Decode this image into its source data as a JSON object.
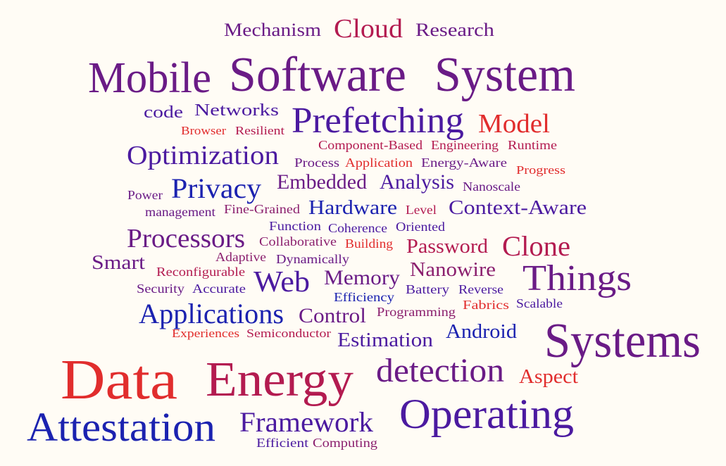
{
  "colors": {
    "background": "#fffcf5",
    "red": "#e12d2d",
    "crimson": "#b31b50",
    "magenta": "#8b1f6e",
    "purple": "#6a1b86",
    "indigo": "#4b1aa0",
    "blue": "#1b22b0"
  },
  "words": [
    {
      "text": "Mechanism",
      "size": 26,
      "color": "purple"
    },
    {
      "text": "Cloud",
      "size": 38,
      "color": "crimson"
    },
    {
      "text": "Research",
      "size": 26,
      "color": "purple"
    },
    {
      "text": "Mobile",
      "size": 62,
      "color": "purple"
    },
    {
      "text": "Software",
      "size": 70,
      "color": "purple"
    },
    {
      "text": "System",
      "size": 70,
      "color": "purple"
    },
    {
      "text": "code",
      "size": 24,
      "color": "indigo"
    },
    {
      "text": "Networks",
      "size": 24,
      "color": "indigo"
    },
    {
      "text": "Prefetching",
      "size": 52,
      "color": "indigo"
    },
    {
      "text": "Model",
      "size": 38,
      "color": "red"
    },
    {
      "text": "Browser",
      "size": 17,
      "color": "red"
    },
    {
      "text": "Resilient",
      "size": 17,
      "color": "crimson"
    },
    {
      "text": "Optimization",
      "size": 38,
      "color": "indigo"
    },
    {
      "text": "Component-Based",
      "size": 18,
      "color": "crimson"
    },
    {
      "text": "Engineering",
      "size": 18,
      "color": "crimson"
    },
    {
      "text": "Runtime",
      "size": 18,
      "color": "crimson"
    },
    {
      "text": "Process",
      "size": 18,
      "color": "purple"
    },
    {
      "text": "Application",
      "size": 18,
      "color": "red"
    },
    {
      "text": "Energy-Aware",
      "size": 18,
      "color": "purple"
    },
    {
      "text": "Progress",
      "size": 17,
      "color": "red"
    },
    {
      "text": "Power",
      "size": 18,
      "color": "purple"
    },
    {
      "text": "Privacy",
      "size": 40,
      "color": "blue"
    },
    {
      "text": "Embedded",
      "size": 30,
      "color": "purple"
    },
    {
      "text": "Analysis",
      "size": 30,
      "color": "indigo"
    },
    {
      "text": "Nanoscale",
      "size": 18,
      "color": "purple"
    },
    {
      "text": "management",
      "size": 18,
      "color": "purple"
    },
    {
      "text": "Fine-Grained",
      "size": 18,
      "color": "magenta"
    },
    {
      "text": "Hardware",
      "size": 28,
      "color": "blue"
    },
    {
      "text": "Level",
      "size": 18,
      "color": "crimson"
    },
    {
      "text": "Context-Aware",
      "size": 28,
      "color": "indigo"
    },
    {
      "text": "Function",
      "size": 18,
      "color": "indigo"
    },
    {
      "text": "Coherence",
      "size": 18,
      "color": "indigo"
    },
    {
      "text": "Oriented",
      "size": 18,
      "color": "indigo"
    },
    {
      "text": "Processors",
      "size": 38,
      "color": "purple"
    },
    {
      "text": "Collaborative",
      "size": 18,
      "color": "magenta"
    },
    {
      "text": "Building",
      "size": 18,
      "color": "red"
    },
    {
      "text": "Password",
      "size": 28,
      "color": "crimson"
    },
    {
      "text": "Clone",
      "size": 40,
      "color": "crimson"
    },
    {
      "text": "Smart",
      "size": 28,
      "color": "purple"
    },
    {
      "text": "Adaptive",
      "size": 18,
      "color": "magenta"
    },
    {
      "text": "Dynamically",
      "size": 18,
      "color": "purple"
    },
    {
      "text": "Reconfigurable",
      "size": 18,
      "color": "crimson"
    },
    {
      "text": "Web",
      "size": 42,
      "color": "indigo"
    },
    {
      "text": "Memory",
      "size": 30,
      "color": "purple"
    },
    {
      "text": "Nanowire",
      "size": 28,
      "color": "magenta"
    },
    {
      "text": "Things",
      "size": 52,
      "color": "purple"
    },
    {
      "text": "Security",
      "size": 18,
      "color": "purple"
    },
    {
      "text": "Accurate",
      "size": 18,
      "color": "indigo"
    },
    {
      "text": "Efficiency",
      "size": 18,
      "color": "blue"
    },
    {
      "text": "Battery",
      "size": 18,
      "color": "indigo"
    },
    {
      "text": "Reverse",
      "size": 18,
      "color": "indigo"
    },
    {
      "text": "Fabrics",
      "size": 18,
      "color": "red"
    },
    {
      "text": "Scalable",
      "size": 18,
      "color": "indigo"
    },
    {
      "text": "Applications",
      "size": 40,
      "color": "blue"
    },
    {
      "text": "Control",
      "size": 30,
      "color": "purple"
    },
    {
      "text": "Programming",
      "size": 18,
      "color": "magenta"
    },
    {
      "text": "Experiences",
      "size": 17,
      "color": "red"
    },
    {
      "text": "Semiconductor",
      "size": 17,
      "color": "crimson"
    },
    {
      "text": "Estimation",
      "size": 28,
      "color": "indigo"
    },
    {
      "text": "Android",
      "size": 28,
      "color": "blue"
    },
    {
      "text": "Systems",
      "size": 70,
      "color": "purple"
    },
    {
      "text": "Data",
      "size": 80,
      "color": "red"
    },
    {
      "text": "Energy",
      "size": 70,
      "color": "crimson"
    },
    {
      "text": "detection",
      "size": 48,
      "color": "purple"
    },
    {
      "text": "Aspect",
      "size": 28,
      "color": "red"
    },
    {
      "text": "Attestation",
      "size": 58,
      "color": "blue"
    },
    {
      "text": "Framework",
      "size": 40,
      "color": "indigo"
    },
    {
      "text": "Operating",
      "size": 60,
      "color": "indigo"
    },
    {
      "text": "Efficient",
      "size": 18,
      "color": "indigo"
    },
    {
      "text": "Computing",
      "size": 18,
      "color": "magenta"
    }
  ]
}
